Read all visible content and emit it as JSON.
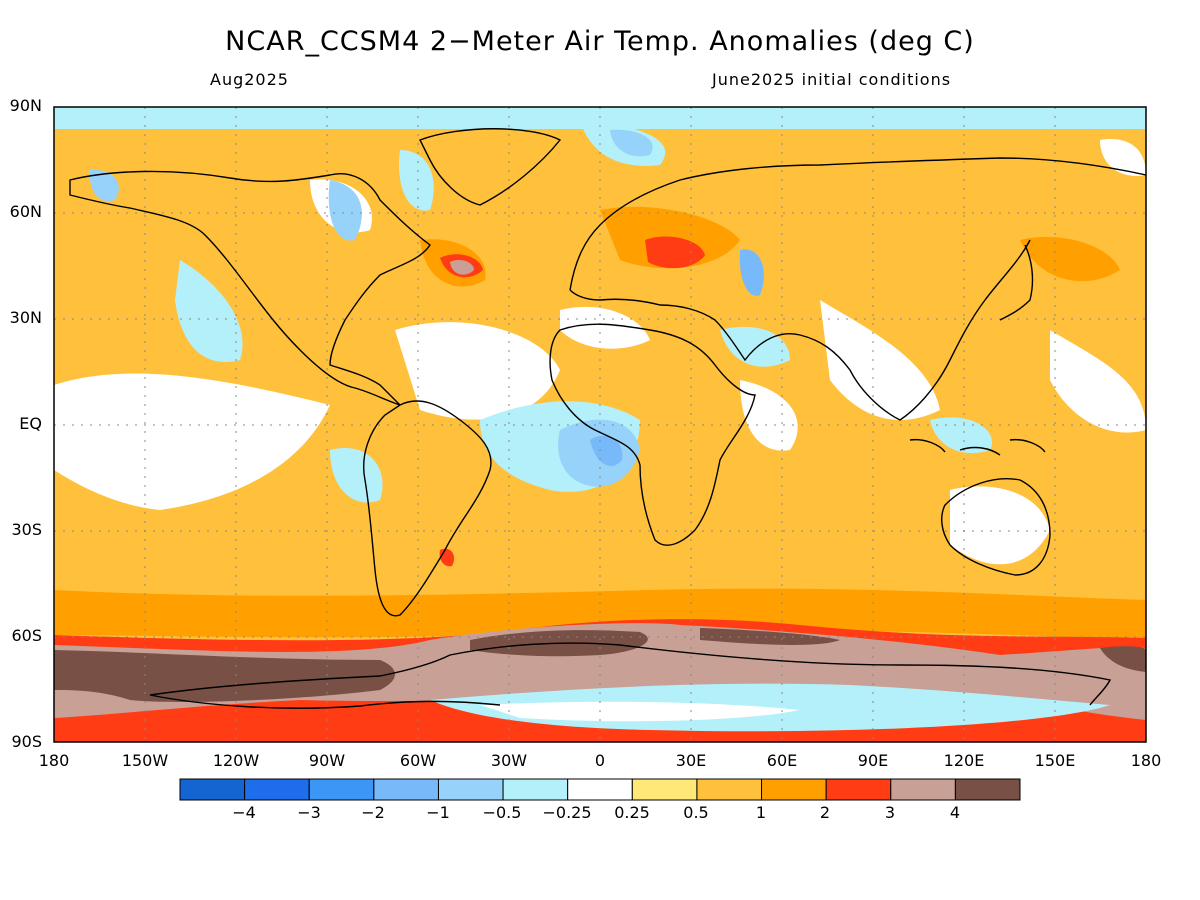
{
  "title": "NCAR_CCSM4 2−Meter Air Temp. Anomalies (deg C)",
  "subtitle_left": "Aug2025",
  "subtitle_right": "June2025 initial conditions",
  "lat_labels": [
    "90N",
    "60N",
    "30N",
    "EQ",
    "30S",
    "60S",
    "90S"
  ],
  "lon_labels": [
    "180",
    "150W",
    "120W",
    "90W",
    "60W",
    "30W",
    "0",
    "30E",
    "60E",
    "90E",
    "120E",
    "150E",
    "180"
  ],
  "colorbar": {
    "colors": [
      "#1464d2",
      "#1e6eeb",
      "#3c96f5",
      "#78b9fa",
      "#96d2fa",
      "#b4f0fa",
      "#ffffff",
      "#ffe878",
      "#ffc03c",
      "#ffa000",
      "#ff3c14",
      "#c8a096",
      "#785046"
    ],
    "labels": [
      "−4",
      "−3",
      "−2",
      "−1",
      "−0.5",
      "−0.25",
      "0.25",
      "0.5",
      "1",
      "2",
      "3",
      "4"
    ]
  }
}
